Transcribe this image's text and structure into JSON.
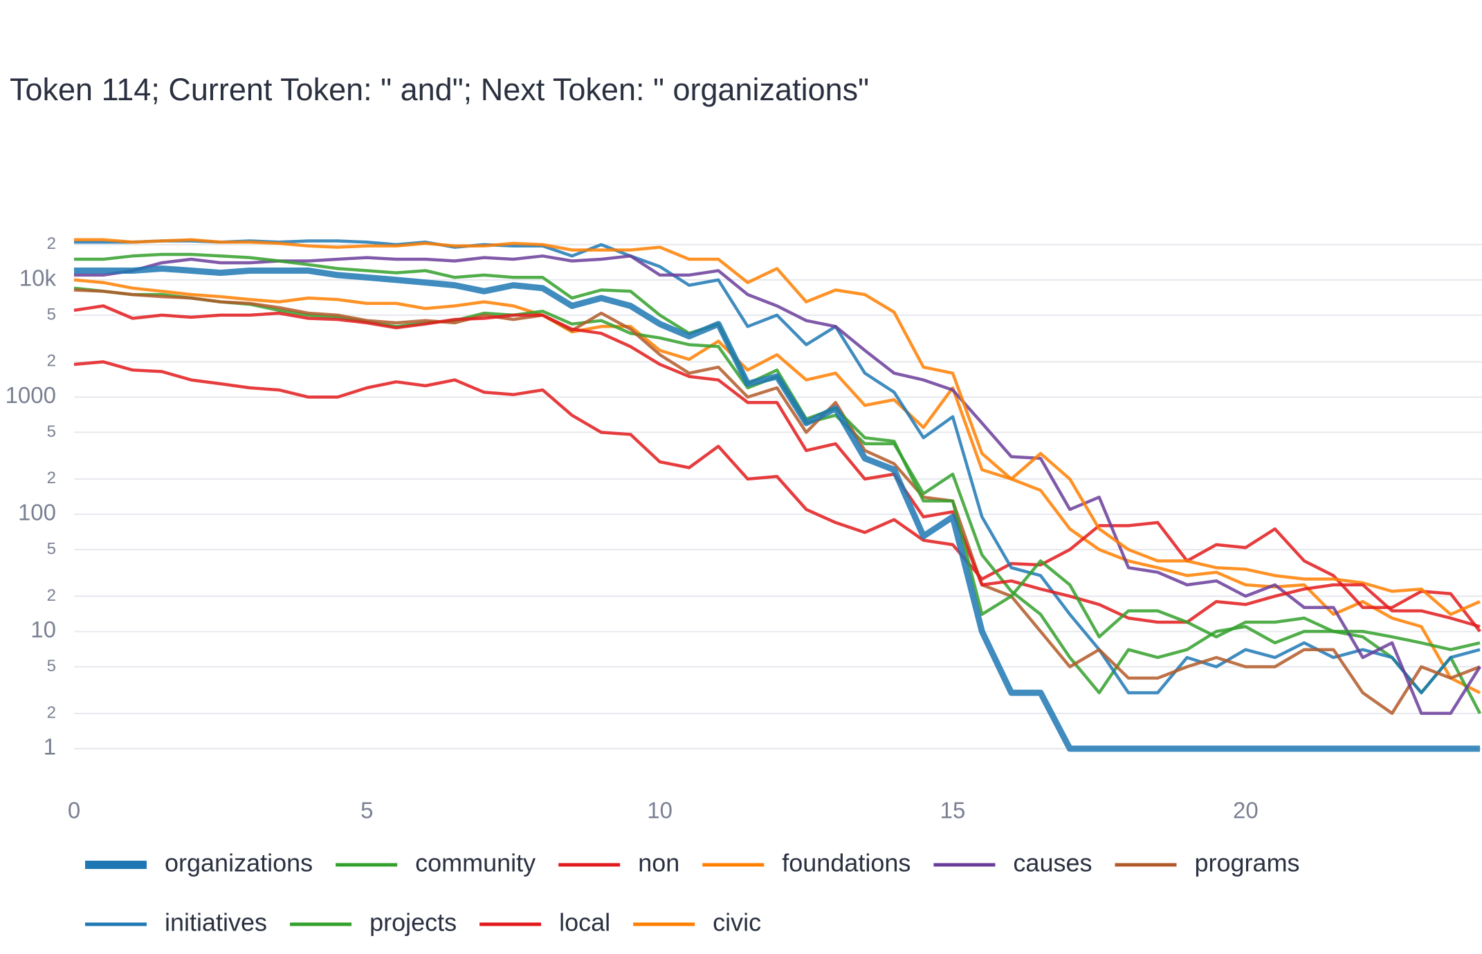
{
  "chart_data": {
    "type": "line",
    "title": "Token 114; Current Token: \" and\"; Next Token: \" organizations\"",
    "log_y": true,
    "grid": true,
    "xlim": [
      0,
      24
    ],
    "xticks": [
      0,
      5,
      10,
      15,
      20
    ],
    "ylim": [
      0.5,
      30000
    ],
    "yticks": [
      1,
      2,
      5,
      10,
      {
        "value": 20,
        "label": "2"
      },
      {
        "value": 50,
        "label": "5"
      },
      100,
      {
        "value": 200,
        "label": "2"
      },
      {
        "value": 500,
        "label": "5"
      },
      1000,
      {
        "value": 2000,
        "label": "2"
      },
      {
        "value": 5000,
        "label": "5"
      },
      {
        "value": 10000,
        "label": "10k"
      },
      {
        "value": 20000,
        "label": "2"
      }
    ],
    "x": [
      0,
      0.5,
      1,
      1.5,
      2,
      2.5,
      3,
      3.5,
      4,
      4.5,
      5,
      5.5,
      6,
      6.5,
      7,
      7.5,
      8,
      8.5,
      9,
      9.5,
      10,
      10.5,
      11,
      11.5,
      12,
      12.5,
      13,
      13.5,
      14,
      14.5,
      15,
      15.5,
      16,
      16.5,
      17,
      17.5,
      18,
      18.5,
      19,
      19.5,
      20,
      20.5,
      21,
      21.5,
      22,
      22.5,
      23,
      23.5,
      24
    ],
    "series": [
      {
        "name": "organizations",
        "color": "#1f78b4",
        "values": [
          12000,
          12000,
          12000,
          12500,
          12000,
          11500,
          12000,
          12000,
          12000,
          11000,
          10500,
          10000,
          9500,
          9000,
          8000,
          9000,
          8500,
          6000,
          7000,
          6000,
          4200,
          3300,
          4200,
          1300,
          1500,
          600,
          800,
          300,
          240,
          65,
          95,
          10,
          3,
          3,
          1,
          1,
          1,
          1,
          1,
          1,
          1,
          1,
          1,
          1,
          1,
          1,
          1,
          1,
          1
        ]
      },
      {
        "name": "community",
        "color": "#33a02c",
        "values": [
          15000,
          15000,
          16000,
          16500,
          16500,
          16000,
          15500,
          14500,
          13500,
          12500,
          12000,
          11500,
          12000,
          10500,
          11000,
          10500,
          10500,
          7000,
          8200,
          8000,
          5000,
          3500,
          4200,
          1300,
          1700,
          650,
          800,
          450,
          420,
          130,
          130,
          14,
          20,
          40,
          25,
          9,
          15,
          15,
          12,
          9,
          12,
          12,
          13,
          10,
          10,
          9,
          8,
          7,
          8
        ]
      },
      {
        "name": "non",
        "color": "#e31a1c",
        "values": [
          5500,
          6000,
          4700,
          5000,
          4800,
          5000,
          5000,
          5200,
          4700,
          4600,
          4300,
          3900,
          4200,
          4600,
          4700,
          5000,
          5000,
          3800,
          3500,
          2700,
          1900,
          1500,
          1400,
          900,
          900,
          350,
          400,
          200,
          220,
          95,
          105,
          25,
          27,
          23,
          20,
          17,
          13,
          12,
          12,
          18,
          17,
          20,
          23,
          25,
          25,
          15,
          15,
          13,
          11
        ]
      },
      {
        "name": "foundations",
        "color": "#ff7f00",
        "values": [
          22000,
          22000,
          21000,
          21500,
          22000,
          21000,
          21000,
          20500,
          19500,
          19000,
          19500,
          19500,
          20500,
          19500,
          19500,
          20500,
          20000,
          18000,
          18000,
          18000,
          19000,
          15000,
          15000,
          9500,
          12500,
          6500,
          8200,
          7500,
          5300,
          1800,
          1600,
          330,
          200,
          330,
          200,
          75,
          50,
          40,
          40,
          35,
          34,
          30,
          28,
          28,
          26,
          22,
          23,
          14,
          18
        ]
      },
      {
        "name": "causes",
        "color": "#6a3d9a",
        "values": [
          11000,
          11000,
          12000,
          14000,
          15000,
          14000,
          14000,
          14500,
          14500,
          15000,
          15500,
          15000,
          15000,
          14500,
          15500,
          15000,
          16000,
          14500,
          15000,
          16000,
          11000,
          11000,
          12000,
          7500,
          6000,
          4500,
          4000,
          2500,
          1600,
          1400,
          1150,
          600,
          310,
          300,
          110,
          140,
          35,
          32,
          25,
          27,
          20,
          25,
          16,
          16,
          6,
          8,
          2,
          2,
          5
        ]
      },
      {
        "name": "programs",
        "color": "#b15928",
        "values": [
          8200,
          8000,
          7500,
          7200,
          7000,
          6500,
          6300,
          5800,
          5200,
          5000,
          4500,
          4300,
          4500,
          4300,
          5000,
          4600,
          5000,
          3700,
          5200,
          3800,
          2300,
          1600,
          1800,
          1000,
          1200,
          500,
          900,
          350,
          270,
          140,
          130,
          25,
          20,
          10,
          5,
          7,
          4,
          4,
          5,
          6,
          5,
          5,
          7,
          7,
          3,
          2,
          5,
          4,
          5
        ]
      },
      {
        "name": "initiatives",
        "color": "#1f78b4",
        "values": [
          21000,
          21000,
          21000,
          21500,
          21500,
          21000,
          21500,
          21000,
          21500,
          21500,
          21000,
          20000,
          21000,
          19000,
          20000,
          19500,
          19500,
          16000,
          20000,
          16000,
          13000,
          9000,
          10000,
          4000,
          5000,
          2800,
          4000,
          1600,
          1100,
          450,
          680,
          95,
          35,
          30,
          14,
          7,
          3,
          3,
          6,
          5,
          7,
          6,
          8,
          6,
          7,
          6,
          3,
          6,
          7
        ]
      },
      {
        "name": "projects",
        "color": "#33a02c",
        "values": [
          8500,
          8000,
          7500,
          7500,
          7000,
          6500,
          6200,
          5500,
          5000,
          4800,
          4400,
          4000,
          4300,
          4500,
          5200,
          5000,
          5400,
          4200,
          4500,
          3500,
          3200,
          2800,
          2700,
          1200,
          1500,
          600,
          700,
          400,
          400,
          150,
          220,
          45,
          22,
          14,
          6,
          3,
          7,
          6,
          7,
          10,
          11,
          8,
          10,
          10,
          9,
          6,
          3,
          6,
          2
        ]
      },
      {
        "name": "local",
        "color": "#e31a1c",
        "values": [
          1900,
          2000,
          1700,
          1650,
          1400,
          1300,
          1200,
          1150,
          1000,
          1000,
          1200,
          1350,
          1250,
          1400,
          1100,
          1050,
          1150,
          700,
          500,
          480,
          280,
          250,
          380,
          200,
          210,
          110,
          85,
          70,
          90,
          60,
          55,
          28,
          38,
          37,
          50,
          80,
          80,
          85,
          40,
          55,
          52,
          75,
          40,
          30,
          16,
          16,
          22,
          21,
          10
        ]
      },
      {
        "name": "civic",
        "color": "#ff7f00",
        "values": [
          10000,
          9500,
          8500,
          8000,
          7500,
          7200,
          6800,
          6500,
          7000,
          6800,
          6300,
          6300,
          5700,
          6000,
          6500,
          6000,
          5000,
          3600,
          4000,
          4000,
          2500,
          2100,
          3000,
          1700,
          2300,
          1400,
          1600,
          850,
          950,
          550,
          1200,
          240,
          200,
          160,
          75,
          50,
          40,
          35,
          30,
          32,
          25,
          24,
          25,
          14,
          18,
          13,
          11,
          4,
          3
        ]
      }
    ]
  }
}
